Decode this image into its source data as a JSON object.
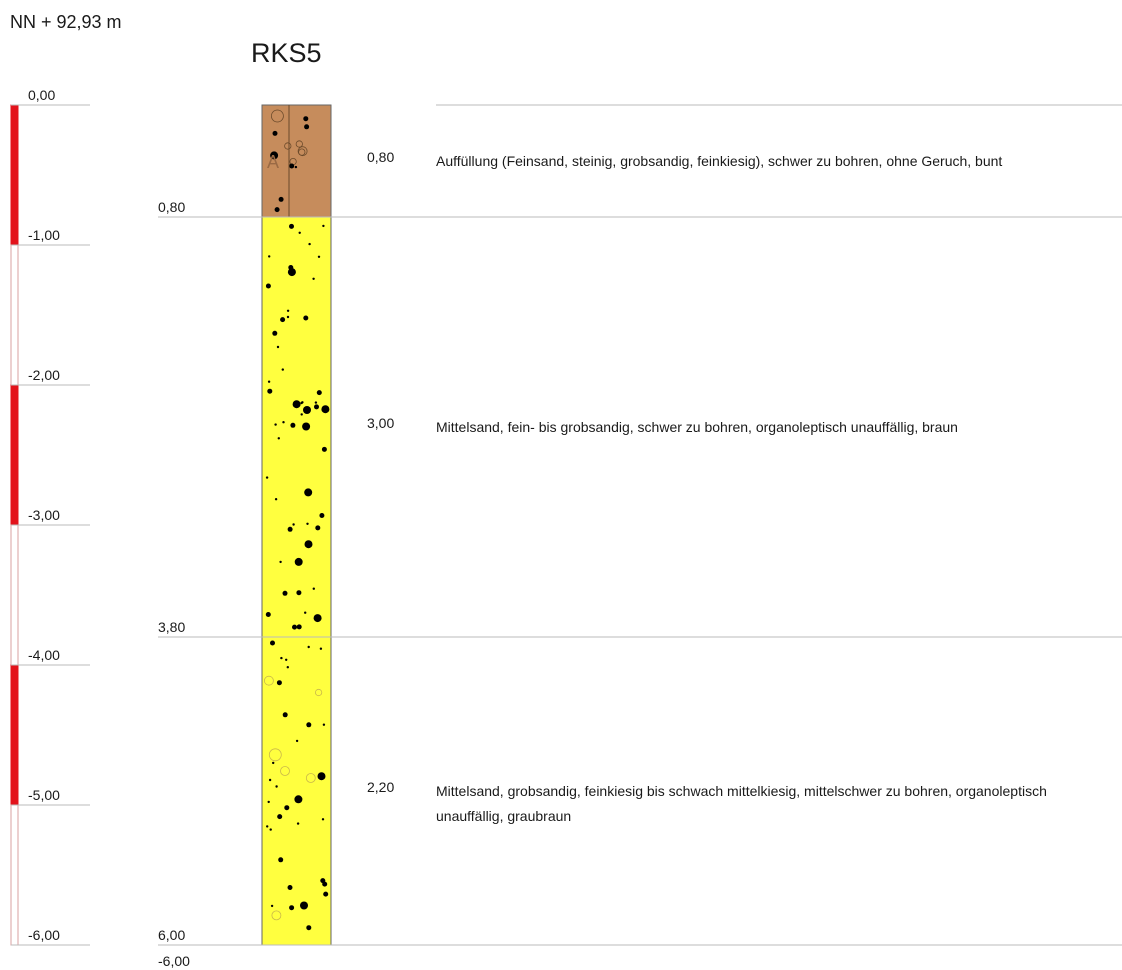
{
  "header": {
    "elevation": "NN + 92,93 m",
    "borehole_name": "RKS5"
  },
  "scale": {
    "max_depth": 6,
    "ticks": [
      {
        "depth": 0,
        "label": "0,00"
      },
      {
        "depth": 1,
        "label": "-1,00"
      },
      {
        "depth": 2,
        "label": "-2,00"
      },
      {
        "depth": 3,
        "label": "-3,00"
      },
      {
        "depth": 4,
        "label": "-4,00"
      },
      {
        "depth": 5,
        "label": "-5,00"
      },
      {
        "depth": 6,
        "label": "-6,00"
      }
    ],
    "bar_color": "#e3131b"
  },
  "final_depth_label": "-6,00",
  "layers": [
    {
      "top": 0.0,
      "bottom": 0.8,
      "bottom_label": "0,80",
      "thickness": "0,80",
      "symbol": "A",
      "color": "#c68c5c",
      "description": "Auffüllung (Feinsand, steinig, grobsandig, feinkiesig), schwer zu bohren, ohne Geruch, bunt"
    },
    {
      "top": 0.8,
      "bottom": 3.8,
      "bottom_label": "3,80",
      "thickness": "3,00",
      "symbol": "",
      "color": "#ffff3f",
      "description": "Mittelsand, fein- bis grobsandig, schwer zu bohren, organoleptisch unauffällig, braun"
    },
    {
      "top": 3.8,
      "bottom": 6.0,
      "bottom_label": "6,00",
      "thickness": "2,20",
      "symbol": "",
      "color": "#ffff3f",
      "description": "Mittelsand, grobsandig, feinkiesig bis schwach mittelkiesig, mittelschwer zu bohren, organoleptisch unauffällig, graubraun"
    }
  ]
}
